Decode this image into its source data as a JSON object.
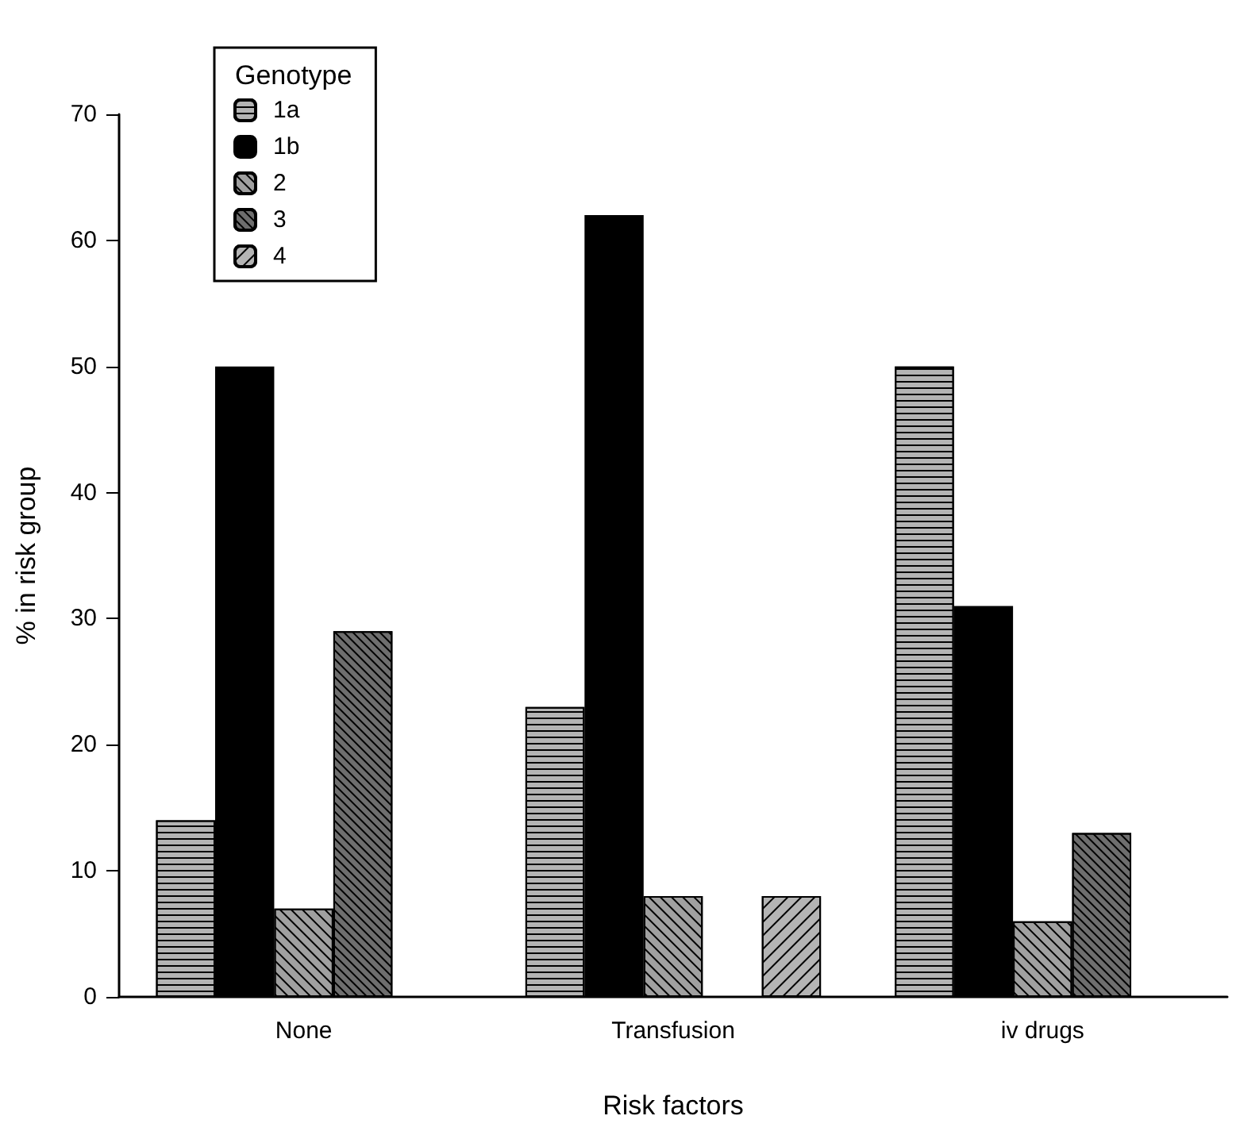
{
  "chart_data": {
    "type": "bar",
    "xlabel": "Risk factors",
    "ylabel": "% in risk group",
    "legend_title": "Genotype",
    "legend": "top left",
    "grid": false,
    "categories": [
      "None",
      "Transfusion",
      "iv drugs"
    ],
    "ylim": [
      0,
      70
    ],
    "yticks": [
      0,
      10,
      20,
      30,
      40,
      50,
      60,
      70
    ],
    "series": [
      {
        "name": "1a",
        "color": "#b4b4b4",
        "values": [
          14,
          23,
          50
        ]
      },
      {
        "name": "1b",
        "color": "#000000",
        "values": [
          50,
          62,
          31
        ]
      },
      {
        "name": "2",
        "color": "#a0a0a0",
        "values": [
          7,
          8,
          6
        ]
      },
      {
        "name": "3",
        "color": "#6e6e6e",
        "values": [
          29,
          null,
          13
        ]
      },
      {
        "name": "4",
        "color": "#b4b4b4",
        "values": [
          null,
          8,
          null
        ]
      }
    ]
  }
}
